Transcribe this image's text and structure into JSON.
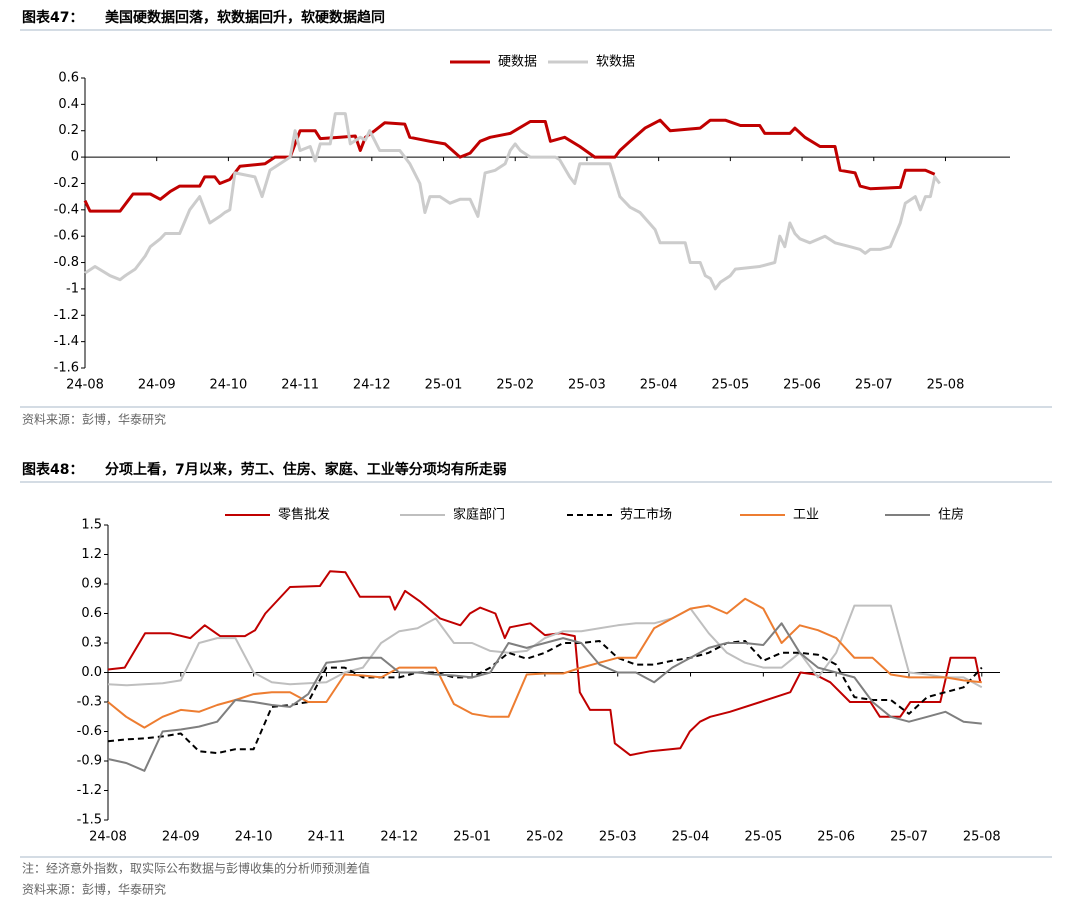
{
  "chart_data": [
    {
      "type": "line",
      "figure_label": "图表47：",
      "title": "美国硬数据回落，软数据回升，软硬数据趋同",
      "source": "资料来源：彭博，华泰研究",
      "xlim": [
        0,
        12.9
      ],
      "xticks": [
        {
          "value": 0,
          "label": "24-08"
        },
        {
          "value": 1,
          "label": "24-09"
        },
        {
          "value": 2,
          "label": "24-10"
        },
        {
          "value": 3,
          "label": "24-11"
        },
        {
          "value": 4,
          "label": "24-12"
        },
        {
          "value": 5,
          "label": "25-01"
        },
        {
          "value": 6,
          "label": "25-02"
        },
        {
          "value": 7,
          "label": "25-03"
        },
        {
          "value": 8,
          "label": "25-04"
        },
        {
          "value": 9,
          "label": "25-05"
        },
        {
          "value": 10,
          "label": "25-06"
        },
        {
          "value": 11,
          "label": "25-07"
        },
        {
          "value": 12,
          "label": "25-08"
        }
      ],
      "ylim": [
        -1.6,
        0.6
      ],
      "yticks": [
        0.6,
        0.4,
        0.2,
        0,
        -0.2,
        -0.4,
        -0.6,
        -0.8,
        -1,
        -1.2,
        -1.4,
        -1.6
      ],
      "series": [
        {
          "name": "硬数据",
          "color": "#c00000",
          "x": [
            0,
            0.07,
            0.49,
            0.67,
            0.91,
            1.05,
            1.19,
            1.32,
            1.6,
            1.67,
            1.81,
            1.88,
            2.02,
            2.16,
            2.51,
            2.65,
            2.86,
            3.0,
            3.21,
            3.28,
            3.56,
            3.77,
            3.84,
            3.91,
            4.04,
            4.18,
            4.46,
            4.53,
            4.81,
            5.02,
            5.23,
            5.37,
            5.51,
            5.65,
            5.93,
            6.21,
            6.42,
            6.49,
            6.69,
            6.9,
            7.11,
            7.39,
            7.46,
            7.6,
            7.81,
            8.02,
            8.16,
            8.58,
            8.72,
            8.93,
            9.14,
            9.41,
            9.48,
            9.83,
            9.9,
            10.04,
            10.25,
            10.46,
            10.53,
            10.74,
            10.81,
            10.95,
            11.37,
            11.44,
            11.72,
            11.85
          ],
          "values": [
            -0.33,
            -0.41,
            -0.41,
            -0.28,
            -0.28,
            -0.32,
            -0.26,
            -0.22,
            -0.22,
            -0.15,
            -0.15,
            -0.2,
            -0.17,
            -0.07,
            -0.05,
            0,
            0,
            0.2,
            0.2,
            0.14,
            0.15,
            0.16,
            0.05,
            0.15,
            0.2,
            0.26,
            0.25,
            0.15,
            0.12,
            0.1,
            0,
            0.03,
            0.12,
            0.15,
            0.18,
            0.27,
            0.27,
            0.12,
            0.15,
            0.08,
            0,
            0,
            0.05,
            0.12,
            0.22,
            0.28,
            0.2,
            0.22,
            0.28,
            0.28,
            0.24,
            0.24,
            0.18,
            0.18,
            0.22,
            0.15,
            0.08,
            0.08,
            -0.1,
            -0.12,
            -0.22,
            -0.24,
            -0.23,
            -0.1,
            -0.1,
            -0.13
          ]
        },
        {
          "name": "软数据",
          "color": "#cccccc",
          "x": [
            0,
            0.14,
            0.35,
            0.49,
            0.56,
            0.7,
            0.84,
            0.91,
            1.05,
            1.12,
            1.32,
            1.46,
            1.6,
            1.74,
            1.88,
            1.95,
            2.02,
            2.09,
            2.37,
            2.47,
            2.58,
            2.72,
            2.86,
            2.93,
            3.0,
            3.14,
            3.21,
            3.28,
            3.42,
            3.49,
            3.63,
            3.7,
            3.84,
            3.91,
            3.97,
            4.11,
            4.39,
            4.53,
            4.67,
            4.74,
            4.81,
            4.95,
            5.09,
            5.23,
            5.37,
            5.48,
            5.58,
            5.72,
            5.86,
            5.93,
            6.0,
            6.07,
            6.21,
            6.56,
            6.62,
            6.76,
            6.83,
            6.9,
            7.32,
            7.46,
            7.6,
            7.74,
            7.95,
            8.02,
            8.37,
            8.44,
            8.58,
            8.65,
            8.72,
            8.79,
            8.86,
            9.0,
            9.07,
            9.41,
            9.62,
            9.69,
            9.76,
            9.83,
            9.9,
            9.97,
            10.11,
            10.32,
            10.46,
            10.67,
            10.81,
            10.88,
            10.95,
            11.09,
            11.23,
            11.37,
            11.44,
            11.58,
            11.65,
            11.72,
            11.79,
            11.85,
            11.92
          ],
          "values": [
            -0.88,
            -0.83,
            -0.9,
            -0.93,
            -0.9,
            -0.85,
            -0.75,
            -0.68,
            -0.62,
            -0.58,
            -0.58,
            -0.4,
            -0.3,
            -0.5,
            -0.45,
            -0.42,
            -0.4,
            -0.12,
            -0.15,
            -0.3,
            -0.1,
            -0.05,
            0,
            0.2,
            0.05,
            0.08,
            -0.03,
            0.1,
            0.1,
            0.33,
            0.33,
            0.1,
            0.15,
            0.13,
            0.2,
            0.05,
            0.05,
            -0.05,
            -0.2,
            -0.42,
            -0.3,
            -0.3,
            -0.35,
            -0.32,
            -0.32,
            -0.45,
            -0.12,
            -0.1,
            -0.05,
            0.05,
            0.1,
            0.05,
            0,
            0,
            -0.02,
            -0.15,
            -0.2,
            -0.05,
            -0.05,
            -0.3,
            -0.38,
            -0.42,
            -0.55,
            -0.65,
            -0.65,
            -0.8,
            -0.8,
            -0.9,
            -0.92,
            -1.0,
            -0.95,
            -0.9,
            -0.85,
            -0.83,
            -0.8,
            -0.6,
            -0.68,
            -0.5,
            -0.58,
            -0.62,
            -0.65,
            -0.6,
            -0.65,
            -0.68,
            -0.7,
            -0.73,
            -0.7,
            -0.7,
            -0.68,
            -0.5,
            -0.35,
            -0.3,
            -0.4,
            -0.3,
            -0.3,
            -0.15,
            -0.2
          ]
        }
      ]
    },
    {
      "type": "line",
      "figure_label": "图表48：",
      "title": "分项上看，7月以来，劳工、住房、家庭、工业等分项均有所走弱",
      "note": "注：经济意外指数，取实际公布数据与彭博收集的分析师预测差值",
      "source": "资料来源：彭博，华泰研究",
      "xlim": [
        0,
        12.25
      ],
      "xticks": [
        {
          "value": 0,
          "label": "24-08"
        },
        {
          "value": 1,
          "label": "24-09"
        },
        {
          "value": 2,
          "label": "24-10"
        },
        {
          "value": 3,
          "label": "24-11"
        },
        {
          "value": 4,
          "label": "24-12"
        },
        {
          "value": 5,
          "label": "25-01"
        },
        {
          "value": 6,
          "label": "25-02"
        },
        {
          "value": 7,
          "label": "25-03"
        },
        {
          "value": 8,
          "label": "25-04"
        },
        {
          "value": 9,
          "label": "25-05"
        },
        {
          "value": 10,
          "label": "25-06"
        },
        {
          "value": 11,
          "label": "25-07"
        },
        {
          "value": 12,
          "label": "25-08"
        }
      ],
      "ylim": [
        -1.5,
        1.5
      ],
      "yticks": [
        1.5,
        1.2,
        0.9,
        0.6,
        0.3,
        {
          "value": 0,
          "label": "0.0"
        },
        -0.3,
        -0.6,
        -0.9,
        -1.2,
        -1.5
      ],
      "x": [
        0,
        0.25,
        0.5,
        0.75,
        1,
        1.25,
        1.5,
        1.75,
        2,
        2.25,
        2.5,
        2.75,
        3,
        3.25,
        3.5,
        3.75,
        4,
        4.25,
        4.5,
        4.75,
        5,
        5.25,
        5.5,
        5.75,
        6,
        6.25,
        6.5,
        6.75,
        7,
        7.25,
        7.5,
        7.75,
        8,
        8.25,
        8.5,
        8.75,
        9,
        9.25,
        9.5,
        9.75,
        10,
        10.25,
        10.5,
        10.75,
        11,
        11.25,
        11.5,
        11.75,
        12
      ],
      "series": [
        {
          "name": "零售批发",
          "color": "#c00000",
          "x": [
            0,
            0.23,
            0.51,
            0.85,
            1.13,
            1.33,
            1.54,
            1.88,
            2.02,
            2.16,
            2.5,
            2.91,
            3.05,
            3.26,
            3.46,
            3.87,
            3.94,
            4.08,
            4.29,
            4.56,
            4.84,
            4.97,
            5.11,
            5.32,
            5.45,
            5.52,
            5.8,
            6.0,
            6.21,
            6.41,
            6.48,
            6.62,
            6.9,
            6.96,
            7.17,
            7.45,
            7.86,
            7.99,
            8.13,
            8.27,
            8.54,
            8.96,
            9.37,
            9.51,
            9.71,
            9.92,
            10.19,
            10.47,
            10.6,
            10.88,
            11.02,
            11.43,
            11.57,
            11.91,
            11.98
          ],
          "values": [
            0.03,
            0.05,
            0.4,
            0.4,
            0.35,
            0.48,
            0.37,
            0.37,
            0.43,
            0.6,
            0.87,
            0.88,
            1.03,
            1.02,
            0.77,
            0.77,
            0.64,
            0.83,
            0.72,
            0.55,
            0.48,
            0.6,
            0.66,
            0.6,
            0.35,
            0.46,
            0.5,
            0.38,
            0.4,
            0.37,
            -0.2,
            -0.38,
            -0.38,
            -0.72,
            -0.84,
            -0.8,
            -0.77,
            -0.6,
            -0.5,
            -0.45,
            -0.4,
            -0.3,
            -0.2,
            0,
            -0.02,
            -0.1,
            -0.3,
            -0.3,
            -0.45,
            -0.45,
            -0.3,
            -0.3,
            0.15,
            0.15,
            -0.1
          ]
        },
        {
          "name": "家庭部门",
          "color": "#bfbfbf",
          "values": [
            -0.12,
            -0.13,
            -0.12,
            -0.11,
            -0.08,
            0.3,
            0.35,
            0.35,
            0,
            -0.1,
            -0.12,
            -0.11,
            -0.1,
            0,
            0.05,
            0.3,
            0.42,
            0.45,
            0.55,
            0.3,
            0.3,
            0.22,
            0.2,
            0.22,
            0.35,
            0.42,
            0.42,
            0.45,
            0.48,
            0.5,
            0.5,
            0.55,
            0.65,
            0.4,
            0.2,
            0.1,
            0.05,
            0.05,
            0.2,
            -0.05,
            0.2,
            0.68,
            0.68,
            0.68,
            0,
            -0.02,
            -0.05,
            -0.05,
            -0.15
          ]
        },
        {
          "name": "劳工市场",
          "color": "#000000",
          "style": "dashed",
          "values": [
            -0.7,
            -0.68,
            -0.67,
            -0.65,
            -0.62,
            -0.8,
            -0.82,
            -0.78,
            -0.78,
            -0.35,
            -0.33,
            -0.3,
            0.05,
            0.05,
            -0.05,
            -0.05,
            -0.05,
            0,
            0,
            -0.05,
            -0.05,
            0.05,
            0.2,
            0.14,
            0.2,
            0.3,
            0.3,
            0.32,
            0.15,
            0.08,
            0.08,
            0.12,
            0.15,
            0.2,
            0.3,
            0.32,
            0.12,
            0.2,
            0.2,
            0.18,
            0.08,
            -0.25,
            -0.28,
            -0.28,
            -0.42,
            -0.25,
            -0.2,
            -0.15,
            0.05
          ]
        },
        {
          "name": "工业",
          "color": "#ed7d31",
          "values": [
            -0.3,
            -0.45,
            -0.56,
            -0.45,
            -0.38,
            -0.4,
            -0.33,
            -0.28,
            -0.22,
            -0.2,
            -0.2,
            -0.3,
            -0.3,
            -0.02,
            -0.03,
            -0.05,
            0.05,
            0.05,
            0.05,
            -0.32,
            -0.42,
            -0.45,
            -0.45,
            -0.02,
            -0.01,
            -0.01,
            0.05,
            0.1,
            0.15,
            0.15,
            0.45,
            0.55,
            0.65,
            0.68,
            0.6,
            0.75,
            0.65,
            0.3,
            0.48,
            0.43,
            0.35,
            0.15,
            0.15,
            -0.02,
            -0.05,
            -0.05,
            -0.05,
            -0.08,
            -0.1
          ]
        },
        {
          "name": "住房",
          "color": "#7f7f7f",
          "values": [
            -0.88,
            -0.92,
            -1.0,
            -0.6,
            -0.58,
            -0.55,
            -0.5,
            -0.28,
            -0.3,
            -0.33,
            -0.35,
            -0.22,
            0.1,
            0.12,
            0.15,
            0.15,
            0,
            0,
            -0.02,
            -0.03,
            -0.05,
            0,
            0.3,
            0.25,
            0.3,
            0.35,
            0.3,
            0.08,
            0,
            0,
            -0.1,
            0.05,
            0.15,
            0.25,
            0.3,
            0.3,
            0.28,
            0.5,
            0.2,
            0.05,
            0,
            -0.05,
            -0.3,
            -0.45,
            -0.5,
            -0.45,
            -0.4,
            -0.5,
            -0.52
          ]
        }
      ]
    }
  ]
}
